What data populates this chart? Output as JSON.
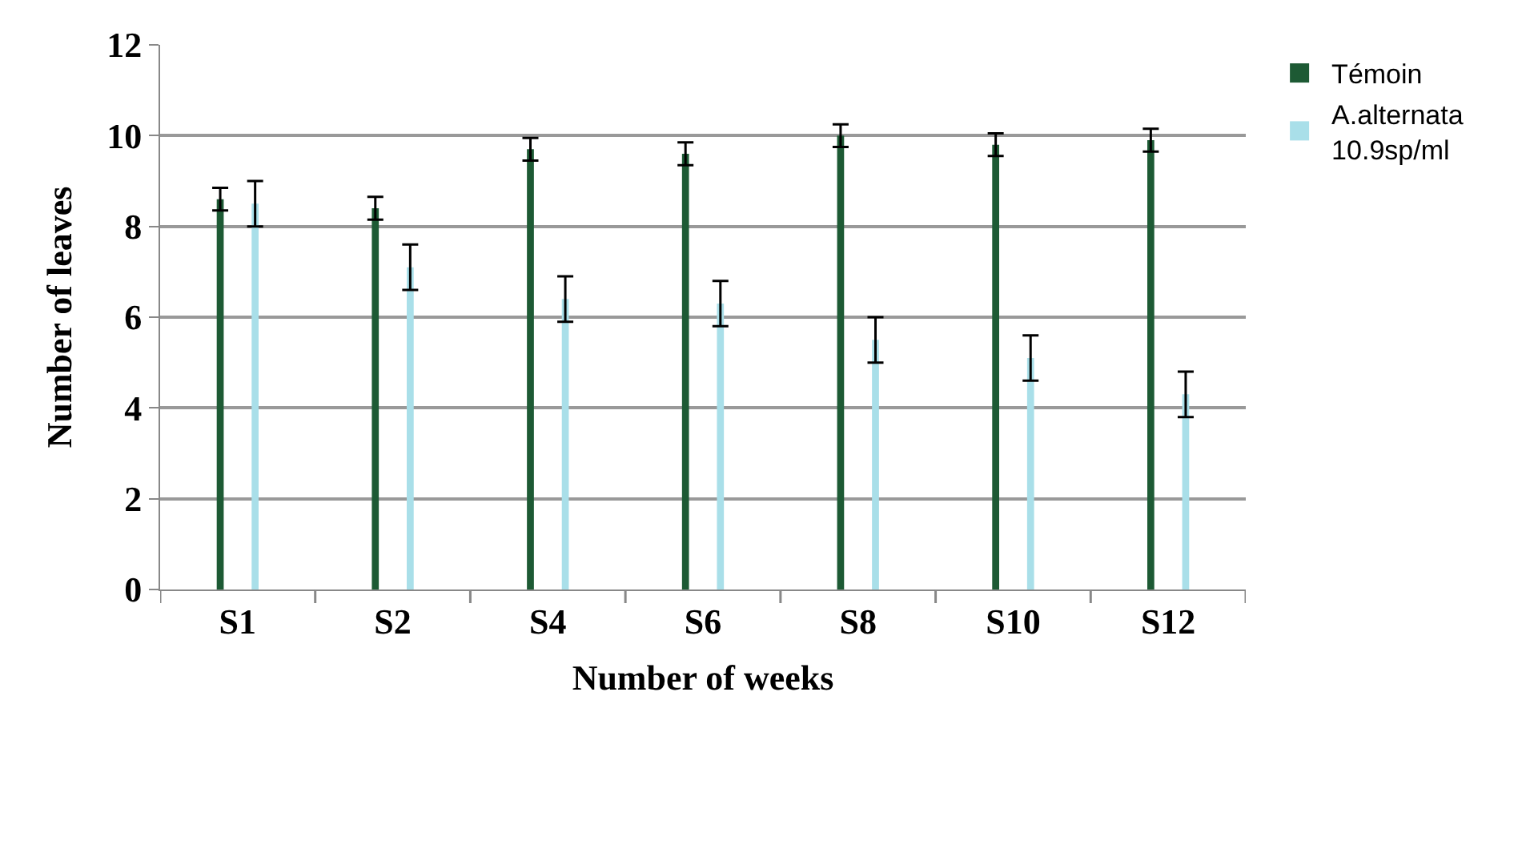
{
  "chart_data": {
    "type": "bar",
    "xlabel": "Number of weeks",
    "ylabel": "Number of leaves",
    "categories": [
      "S1",
      "S2",
      "S4",
      "S6",
      "S8",
      "S10",
      "S12"
    ],
    "series": [
      {
        "name": "Témoin",
        "color": "#1d5a34",
        "values": [
          8.6,
          8.4,
          9.7,
          9.6,
          10.0,
          9.8,
          9.9
        ],
        "errors": [
          0.25,
          0.25,
          0.25,
          0.25,
          0.25,
          0.25,
          0.25
        ]
      },
      {
        "name": "A.alternata 10.9sp/ml",
        "color": "#a9dfe9",
        "values": [
          8.5,
          7.1,
          6.4,
          6.3,
          5.5,
          5.1,
          4.3
        ],
        "errors": [
          0.5,
          0.5,
          0.5,
          0.5,
          0.5,
          0.5,
          0.5
        ]
      }
    ],
    "ylim": [
      0,
      12
    ],
    "yticks": [
      0,
      2,
      4,
      6,
      8,
      10,
      12
    ],
    "grid": "y",
    "legend": "top right"
  }
}
